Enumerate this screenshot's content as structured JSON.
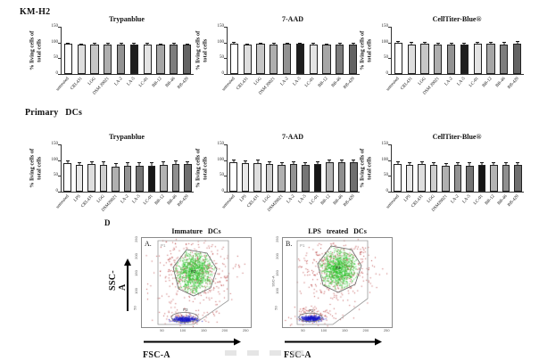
{
  "sections": {
    "km_h2": {
      "header": "KM-H2"
    },
    "primary_dcs": {
      "header": "Primary DCs"
    },
    "panel_d": {
      "label": "D",
      "plots": [
        {
          "panel": "A.",
          "title": "Immature DCs"
        },
        {
          "panel": "B.",
          "title": "LPS treated DCs"
        }
      ]
    }
  },
  "chart_data": [
    {
      "type": "bar",
      "section": "KM-H2",
      "title": "Trypanblue",
      "ylabel_lines": [
        "% living cells of",
        "total cells"
      ],
      "categories": [
        "untreated",
        "CRL431",
        "LGG",
        "DSM 20021",
        "LA-2",
        "LA-5",
        "LC-01",
        "BB-12",
        "BB-46",
        "BB-420"
      ],
      "values": [
        96,
        93,
        94,
        94,
        93,
        94,
        94,
        93,
        94,
        93
      ],
      "errors": [
        1.5,
        1.5,
        1.5,
        1.5,
        2,
        1.5,
        2,
        1.5,
        1.5,
        1.5
      ],
      "ylim": [
        0,
        150
      ],
      "yticks": [
        0,
        50,
        100,
        150
      ],
      "grid": false,
      "bar_colors": [
        "#ffffff",
        "#dedede",
        "#c6c6c6",
        "#aeaeae",
        "#929292",
        "#1e1e1e",
        "#e4e4e4",
        "#a6a6a6",
        "#7d7d7d",
        "#636363"
      ]
    },
    {
      "type": "bar",
      "section": "KM-H2",
      "title": "7-AAD",
      "ylabel_lines": [
        "% living cells of",
        "total cells"
      ],
      "categories": [
        "untreated",
        "CRL431",
        "LGG",
        "DSM 20021",
        "LA-2",
        "LA-5",
        "LC-01",
        "BB-12",
        "BB-46",
        "BB-420"
      ],
      "values": [
        97,
        93,
        95,
        94,
        95,
        95,
        94,
        93,
        94,
        94
      ],
      "errors": [
        1,
        1.5,
        1,
        2,
        1,
        1,
        1.5,
        1,
        1.5,
        1.5
      ],
      "ylim": [
        0,
        150
      ],
      "yticks": [
        0,
        50,
        100,
        150
      ],
      "grid": false,
      "bar_colors": [
        "#ffffff",
        "#dedede",
        "#c6c6c6",
        "#aeaeae",
        "#929292",
        "#1e1e1e",
        "#e4e4e4",
        "#a6a6a6",
        "#7d7d7d",
        "#636363"
      ]
    },
    {
      "type": "bar",
      "section": "KM-H2",
      "title": "CellTiter-Blue®",
      "ylabel_lines": [
        "% living cells of",
        "total cells"
      ],
      "categories": [
        "untreated",
        "CRL431",
        "LGG",
        "DSM 20021",
        "LA-2",
        "LA-5",
        "LC-01",
        "BB-12",
        "BB-46",
        "BB-420"
      ],
      "values": [
        100,
        93,
        96,
        93,
        94,
        93,
        96,
        95,
        93,
        96
      ],
      "errors": [
        2,
        5,
        4,
        4,
        3,
        4,
        4,
        4,
        5,
        5
      ],
      "ylim": [
        0,
        150
      ],
      "yticks": [
        0,
        50,
        100,
        150
      ],
      "grid": false,
      "bar_colors": [
        "#ffffff",
        "#dedede",
        "#c6c6c6",
        "#aeaeae",
        "#929292",
        "#1e1e1e",
        "#e4e4e4",
        "#a6a6a6",
        "#7d7d7d",
        "#636363"
      ]
    },
    {
      "type": "bar",
      "section": "Primary DCs",
      "title": "Trypanblue",
      "ylabel_lines": [
        "% living cells of",
        "total cells"
      ],
      "categories": [
        "untreated",
        "LPS",
        "CRL431",
        "LGG",
        "DSM20021",
        "LA-2",
        "LA-5",
        "LC-01",
        "BB-12",
        "BB-46",
        "BB-420"
      ],
      "values": [
        90,
        85,
        88,
        85,
        80,
        82,
        82,
        83,
        86,
        88,
        87
      ],
      "errors": [
        7,
        7,
        6,
        8,
        8,
        8,
        8,
        9,
        7,
        7,
        7
      ],
      "ylim": [
        0,
        150
      ],
      "yticks": [
        0,
        50,
        100,
        150
      ],
      "grid": false,
      "bar_colors": [
        "#ffffff",
        "#e9e9e9",
        "#dedede",
        "#cfcfcf",
        "#b0b0b0",
        "#939393",
        "#757575",
        "#161616",
        "#b3b3b3",
        "#8f8f8f",
        "#6f6f6f"
      ]
    },
    {
      "type": "bar",
      "section": "Primary DCs",
      "title": "7-AAD",
      "ylabel_lines": [
        "% living cells of",
        "total cells"
      ],
      "categories": [
        "untreated",
        "LPS",
        "CRL431",
        "LGG",
        "DSM20021",
        "LA-2",
        "LA-5",
        "LC-01",
        "BB-12",
        "BB-46",
        "BB-420"
      ],
      "values": [
        93,
        90,
        92,
        88,
        86,
        88,
        86,
        87,
        93,
        94,
        93
      ],
      "errors": [
        6,
        7,
        6,
        5,
        6,
        5,
        6,
        7,
        6,
        6,
        7
      ],
      "ylim": [
        0,
        150
      ],
      "yticks": [
        0,
        50,
        100,
        150
      ],
      "grid": false,
      "bar_colors": [
        "#ffffff",
        "#e9e9e9",
        "#dedede",
        "#cfcfcf",
        "#b0b0b0",
        "#939393",
        "#757575",
        "#161616",
        "#b3b3b3",
        "#8f8f8f",
        "#6f6f6f"
      ]
    },
    {
      "type": "bar",
      "section": "Primary DCs",
      "title": "CellTiter-Blue®",
      "ylabel_lines": [
        "% living cells of",
        "total cells"
      ],
      "categories": [
        "untreated",
        "LPS",
        "CRL431",
        "LGG",
        "DSM20021",
        "LA-2",
        "LA-5",
        "LC-01",
        "BB-12",
        "BB-46",
        "BB-420"
      ],
      "values": [
        88,
        85,
        87,
        85,
        82,
        84,
        83,
        85,
        85,
        86,
        86
      ],
      "errors": [
        6,
        6,
        7,
        6,
        7,
        6,
        7,
        6,
        6,
        6,
        6
      ],
      "ylim": [
        0,
        150
      ],
      "yticks": [
        0,
        50,
        100,
        150
      ],
      "grid": false,
      "bar_colors": [
        "#ffffff",
        "#e9e9e9",
        "#dedede",
        "#cfcfcf",
        "#b0b0b0",
        "#939393",
        "#757575",
        "#161616",
        "#b3b3b3",
        "#8f8f8f",
        "#6f6f6f"
      ]
    },
    {
      "type": "scatter",
      "panel": "A.",
      "title": "Immature DCs",
      "xlabel": "FSC-A",
      "ylabel": "SSC-A",
      "x_ticks": [
        50,
        100,
        150,
        200,
        250
      ],
      "y_ticks": [
        50,
        100,
        150,
        200,
        250
      ],
      "gates": [
        "P1",
        "P2",
        "P3"
      ],
      "clusters": [
        {
          "gate": "P2",
          "color": "green",
          "fsc_center": 130,
          "ssc_center": 160
        },
        {
          "gate": "P3",
          "color": "blue",
          "fsc_center": 110,
          "ssc_center": 18
        }
      ]
    },
    {
      "type": "scatter",
      "panel": "B.",
      "title": "LPS treated DCs",
      "xlabel": "FSC-A",
      "ylabel": "SSC-A",
      "x_ticks": [
        50,
        100,
        150,
        200,
        250
      ],
      "y_ticks": [
        50,
        100,
        150,
        200,
        250
      ],
      "gates": [
        "P1",
        "P2",
        "P3"
      ],
      "clusters": [
        {
          "gate": "P2",
          "color": "green",
          "fsc_center": 140,
          "ssc_center": 170
        },
        {
          "gate": "P3",
          "color": "blue",
          "fsc_center": 90,
          "ssc_center": 15
        }
      ]
    }
  ]
}
